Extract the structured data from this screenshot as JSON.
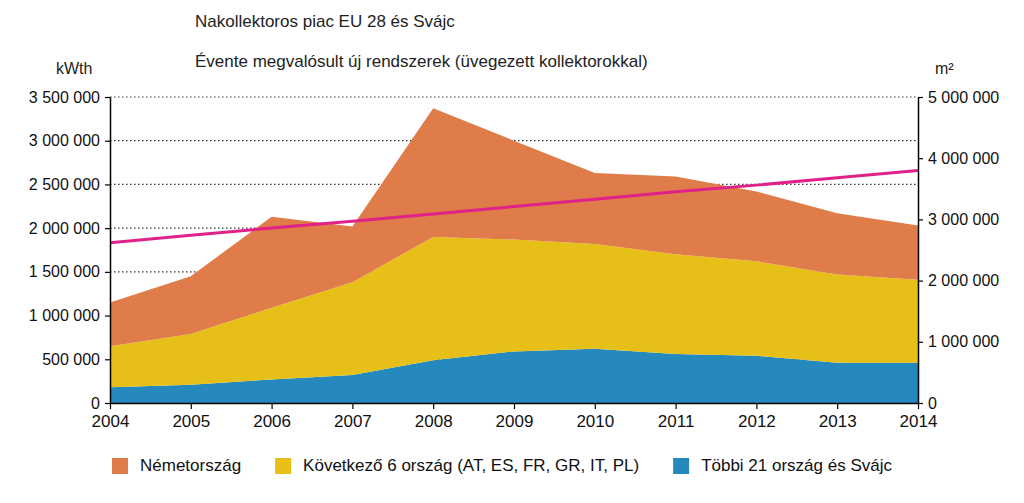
{
  "chart_data": {
    "type": "area",
    "title": "Nakollektoros piac EU 28 és Svájc",
    "subtitle": "Évente megvalósult új rendszerek (üvegezett kollektorokkal)",
    "y_label": "kWth",
    "y2_label": "m²",
    "stacked": true,
    "grid": true,
    "legend": "bottom",
    "x": [
      2004,
      2005,
      2006,
      2007,
      2008,
      2009,
      2010,
      2011,
      2012,
      2013,
      2014
    ],
    "xlim": [
      2004,
      2014
    ],
    "xticks": [
      2004,
      2005,
      2006,
      2007,
      2008,
      2009,
      2010,
      2011,
      2012,
      2013,
      2014
    ],
    "ylim": [
      0,
      3500000
    ],
    "yticks": [
      0,
      {
        "value": 500000,
        "label": "500 000"
      },
      {
        "value": 1000000,
        "label": "1 000 000"
      },
      {
        "value": 1500000,
        "label": "1 500 000"
      },
      {
        "value": 2000000,
        "label": "2 000 000"
      },
      {
        "value": 2500000,
        "label": "2 500 000"
      },
      {
        "value": 3000000,
        "label": "3 000 000"
      },
      {
        "value": 3500000,
        "label": "3 500 000"
      }
    ],
    "y2lim": [
      0,
      5000000
    ],
    "y2ticks": [
      0,
      {
        "value": 1000000,
        "label": "1 000 000"
      },
      {
        "value": 2000000,
        "label": "2 000 000"
      },
      {
        "value": 3000000,
        "label": "3 000 000"
      },
      {
        "value": 4000000,
        "label": "4 000 000"
      },
      {
        "value": 5000000,
        "label": "5 000 000"
      }
    ],
    "series": [
      {
        "name": "Németország",
        "color": "#e07b4a",
        "values": [
          500000,
          660000,
          1040000,
          640000,
          1470000,
          1130000,
          810000,
          890000,
          800000,
          700000,
          620000
        ]
      },
      {
        "name": "Következő 6 ország (AT, ES, FR, GR, IT, PL)",
        "color": "#e6c019",
        "values": [
          470000,
          580000,
          820000,
          1060000,
          1410000,
          1280000,
          1200000,
          1140000,
          1080000,
          1010000,
          950000
        ]
      },
      {
        "name": "Többi 21 ország és Svájc",
        "color": "#2589bd",
        "values": [
          180000,
          210000,
          270000,
          320000,
          490000,
          590000,
          620000,
          560000,
          540000,
          460000,
          460000
        ]
      },
      {
        "type": "line",
        "axis": "y2",
        "color": "#e0218a",
        "values": [
          2620000,
          2740000,
          2860000,
          2970000,
          3090000,
          3210000,
          3330000,
          3450000,
          3560000,
          3680000,
          3800000
        ]
      }
    ]
  }
}
